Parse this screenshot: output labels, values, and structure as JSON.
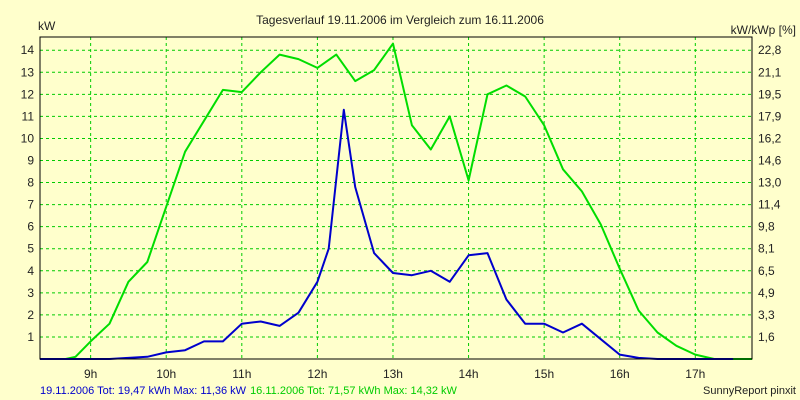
{
  "chart_data": {
    "type": "line",
    "title": "Tagesverlauf 19.11.2006 im Vergleich zum 16.11.2006",
    "ylabel_left": "kW",
    "ylabel_right": "kW/kWp [%]",
    "x_tick_labels": [
      "9h",
      "10h",
      "11h",
      "12h",
      "13h",
      "14h",
      "15h",
      "16h",
      "17h"
    ],
    "x_tick_hours": [
      9,
      10,
      11,
      12,
      13,
      14,
      15,
      16,
      17
    ],
    "xlim": [
      8.33,
      17.75
    ],
    "ylim_left": [
      0,
      14.6
    ],
    "y_left_ticks": [
      "1",
      "2",
      "3",
      "4",
      "5",
      "6",
      "7",
      "8",
      "9",
      "10",
      "11",
      "12",
      "13",
      "14"
    ],
    "y_right_ticks": [
      "1,6",
      "3,3",
      "4,9",
      "6,5",
      "8,1",
      "9,8",
      "11,4",
      "13,0",
      "14,6",
      "16,2",
      "17,9",
      "19,5",
      "21,1",
      "22,8"
    ],
    "grid": true,
    "colors": {
      "background": "#ffffcc",
      "grid": "#00cc00",
      "series_19": "#0000cc",
      "series_16": "#00dd00"
    },
    "series": [
      {
        "name": "19.11.2006",
        "x": [
          8.33,
          8.67,
          8.75,
          9.0,
          9.25,
          9.5,
          9.75,
          10.0,
          10.25,
          10.5,
          10.75,
          11.0,
          11.25,
          11.5,
          11.75,
          12.0,
          12.15,
          12.35,
          12.5,
          12.75,
          13.0,
          13.25,
          13.5,
          13.75,
          14.0,
          14.25,
          14.5,
          14.75,
          15.0,
          15.25,
          15.5,
          15.75,
          16.0,
          16.25,
          16.5,
          16.75,
          17.0,
          17.25,
          17.5
        ],
        "values": [
          0,
          0,
          0,
          0,
          0,
          0.05,
          0.1,
          0.3,
          0.4,
          0.8,
          0.8,
          1.6,
          1.7,
          1.5,
          2.1,
          3.5,
          5.0,
          11.3,
          7.8,
          4.8,
          3.9,
          3.8,
          4.0,
          3.5,
          4.7,
          4.8,
          2.7,
          1.6,
          1.6,
          1.2,
          1.6,
          0.9,
          0.2,
          0.05,
          0,
          0,
          0,
          0,
          0
        ]
      },
      {
        "name": "16.11.2006",
        "x": [
          8.33,
          8.67,
          8.8,
          9.0,
          9.25,
          9.5,
          9.75,
          10.0,
          10.25,
          10.5,
          10.75,
          11.0,
          11.25,
          11.5,
          11.75,
          12.0,
          12.25,
          12.5,
          12.75,
          13.0,
          13.25,
          13.5,
          13.75,
          14.0,
          14.25,
          14.5,
          14.75,
          15.0,
          15.25,
          15.5,
          15.75,
          16.0,
          16.25,
          16.5,
          16.75,
          17.0,
          17.25,
          17.5,
          17.75
        ],
        "values": [
          0,
          0,
          0.1,
          0.8,
          1.6,
          3.5,
          4.4,
          6.9,
          9.4,
          10.8,
          12.2,
          12.1,
          13.0,
          13.8,
          13.6,
          13.2,
          13.8,
          12.6,
          13.1,
          14.3,
          10.6,
          9.5,
          11.0,
          8.1,
          12.0,
          12.4,
          11.9,
          10.6,
          8.6,
          7.6,
          6.1,
          4.1,
          2.2,
          1.2,
          0.6,
          0.2,
          0,
          0,
          0
        ]
      }
    ]
  },
  "footer": {
    "series_19_text": "19.11.2006 Tot: 19,47 kWh Max: 11,36 kW",
    "series_16_text": "16.11.2006 Tot: 71,57 kWh Max: 14,32 kW",
    "credit": "SunnyReport pinxit"
  }
}
